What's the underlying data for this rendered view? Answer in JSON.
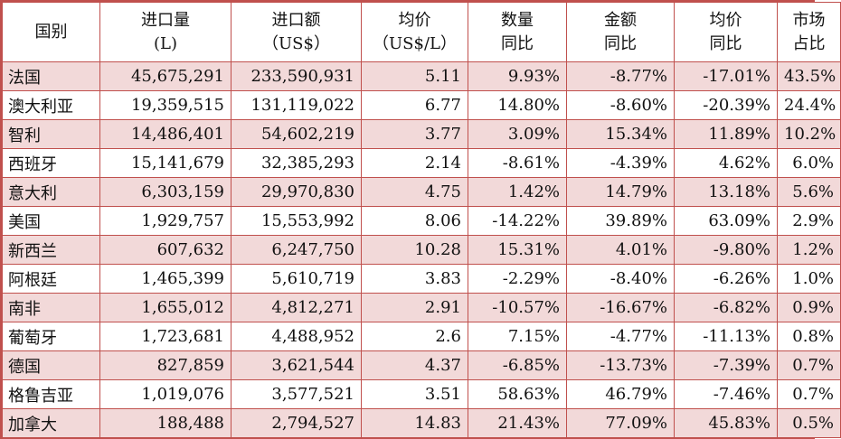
{
  "colors": {
    "border": "#c0504d",
    "shaded_row": "#f2d9d9",
    "plain_row": "#ffffff"
  },
  "headers": [
    {
      "line1": "国别",
      "line2": ""
    },
    {
      "line1": "进口量",
      "line2": "(L)"
    },
    {
      "line1": "进口额",
      "line2": "（US$）"
    },
    {
      "line1": "均价",
      "line2": "（US$/L）"
    },
    {
      "line1": "数量",
      "line2": "同比"
    },
    {
      "line1": "金额",
      "line2": "同比"
    },
    {
      "line1": "均价",
      "line2": "同比"
    },
    {
      "line1": "市场",
      "line2": "占比"
    }
  ],
  "rows": [
    [
      "法国",
      "45,675,291",
      "233,590,931",
      "5.11",
      "9.93%",
      "-8.77%",
      "-17.01%",
      "43.5%"
    ],
    [
      "澳大利亚",
      "19,359,515",
      "131,119,022",
      "6.77",
      "14.80%",
      "-8.60%",
      "-20.39%",
      "24.4%"
    ],
    [
      "智利",
      "14,486,401",
      "54,602,219",
      "3.77",
      "3.09%",
      "15.34%",
      "11.89%",
      "10.2%"
    ],
    [
      "西班牙",
      "15,141,679",
      "32,385,293",
      "2.14",
      "-8.61%",
      "-4.39%",
      "4.62%",
      "6.0%"
    ],
    [
      "意大利",
      "6,303,159",
      "29,970,830",
      "4.75",
      "1.42%",
      "14.79%",
      "13.18%",
      "5.6%"
    ],
    [
      "美国",
      "1,929,757",
      "15,553,992",
      "8.06",
      "-14.22%",
      "39.89%",
      "63.09%",
      "2.9%"
    ],
    [
      "新西兰",
      "607,632",
      "6,247,750",
      "10.28",
      "15.31%",
      "4.01%",
      "-9.80%",
      "1.2%"
    ],
    [
      "阿根廷",
      "1,465,399",
      "5,610,719",
      "3.83",
      "-2.29%",
      "-8.40%",
      "-6.26%",
      "1.0%"
    ],
    [
      "南非",
      "1,655,012",
      "4,812,271",
      "2.91",
      "-10.57%",
      "-16.67%",
      "-6.82%",
      "0.9%"
    ],
    [
      "葡萄牙",
      "1,723,681",
      "4,488,952",
      "2.6",
      "7.15%",
      "-4.77%",
      "-11.13%",
      "0.8%"
    ],
    [
      "德国",
      "827,859",
      "3,621,544",
      "4.37",
      "-6.85%",
      "-13.73%",
      "-7.39%",
      "0.7%"
    ],
    [
      "格鲁吉亚",
      "1,019,076",
      "3,577,521",
      "3.51",
      "58.63%",
      "46.79%",
      "-7.46%",
      "0.7%"
    ],
    [
      "加拿大",
      "188,488",
      "2,794,527",
      "14.83",
      "21.43%",
      "77.09%",
      "45.83%",
      "0.5%"
    ]
  ]
}
